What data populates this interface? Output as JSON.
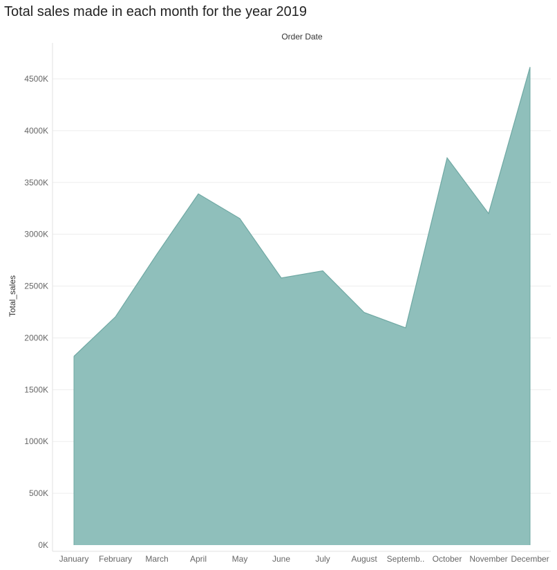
{
  "chart_data": {
    "type": "area",
    "title": "Total sales made in each month for the year 2019",
    "xlabel": "Order Date",
    "ylabel": "Total_sales",
    "categories": [
      "January",
      "February",
      "March",
      "April",
      "May",
      "June",
      "July",
      "August",
      "September",
      "October",
      "November",
      "December"
    ],
    "category_labels": [
      "January",
      "February",
      "March",
      "April",
      "May",
      "June",
      "July",
      "August",
      "Septemb..",
      "October",
      "November",
      "December"
    ],
    "series": [
      {
        "name": "Total_sales",
        "values": [
          1822,
          2203,
          2808,
          3390,
          3152,
          2578,
          2647,
          2245,
          2097,
          3737,
          3200,
          4614
        ]
      }
    ],
    "value_unit": "K",
    "ylim": [
      0,
      4750
    ],
    "yticks": [
      0,
      500,
      1000,
      1500,
      2000,
      2500,
      3000,
      3500,
      4000,
      4500
    ],
    "ytick_labels": [
      "0K",
      "500K",
      "1000K",
      "1500K",
      "2000K",
      "2500K",
      "3000K",
      "3500K",
      "4000K",
      "4500K"
    ],
    "grid": true,
    "fill_color": "#8fbfbb",
    "line_color": "#6fa8a3"
  }
}
